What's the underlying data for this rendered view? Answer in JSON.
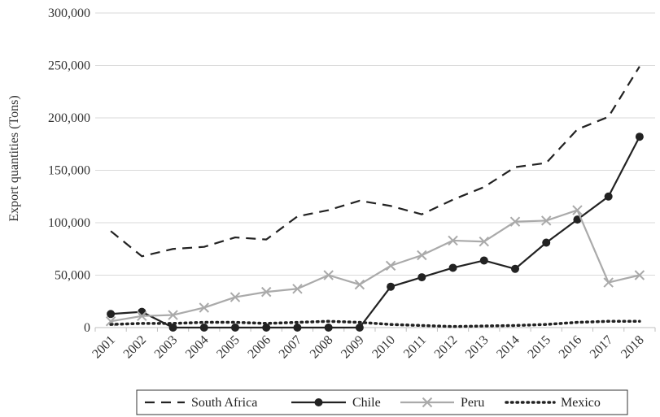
{
  "chart_data": {
    "type": "line",
    "title": "",
    "xlabel": "",
    "ylabel": "Export quantities (Tons)",
    "categories": [
      "2001",
      "2002",
      "2003",
      "2004",
      "2005",
      "2006",
      "2007",
      "2008",
      "2009",
      "2010",
      "2011",
      "2012",
      "2013",
      "2014",
      "2015",
      "2016",
      "2017",
      "2018"
    ],
    "ylim": [
      0,
      300000
    ],
    "yticks": [
      0,
      50000,
      100000,
      150000,
      200000,
      250000,
      300000
    ],
    "ytick_labels": [
      "0",
      "50,000",
      "100,000",
      "150,000",
      "200,000",
      "250,000",
      "300,000"
    ],
    "grid": "horizontal",
    "legend": "bottom",
    "series": [
      {
        "name": "South Africa",
        "style": "dashed",
        "marker": "none",
        "color": "#222222",
        "values": [
          92000,
          68000,
          75000,
          77000,
          86000,
          84000,
          106000,
          112000,
          121000,
          116000,
          108000,
          122000,
          134000,
          153000,
          157000,
          189000,
          201000,
          249000
        ]
      },
      {
        "name": "Chile",
        "style": "solid",
        "marker": "circle",
        "color": "#222222",
        "values": [
          13000,
          15000,
          0,
          0,
          0,
          0,
          0,
          0,
          0,
          39000,
          48000,
          57000,
          64000,
          56000,
          81000,
          103000,
          125000,
          182000
        ]
      },
      {
        "name": "Peru",
        "style": "solid",
        "marker": "x",
        "color": "#aaaaaa",
        "values": [
          6000,
          11000,
          12000,
          19000,
          29000,
          34000,
          37000,
          50000,
          41000,
          59000,
          69000,
          83000,
          82000,
          101000,
          102000,
          112000,
          43000,
          50000
        ]
      },
      {
        "name": "Mexico",
        "style": "dotted",
        "marker": "none",
        "color": "#222222",
        "values": [
          3000,
          4000,
          4000,
          5000,
          5000,
          4000,
          5000,
          6000,
          5000,
          3000,
          2000,
          1000,
          1500,
          2000,
          3000,
          5000,
          6000,
          6000
        ]
      }
    ]
  }
}
